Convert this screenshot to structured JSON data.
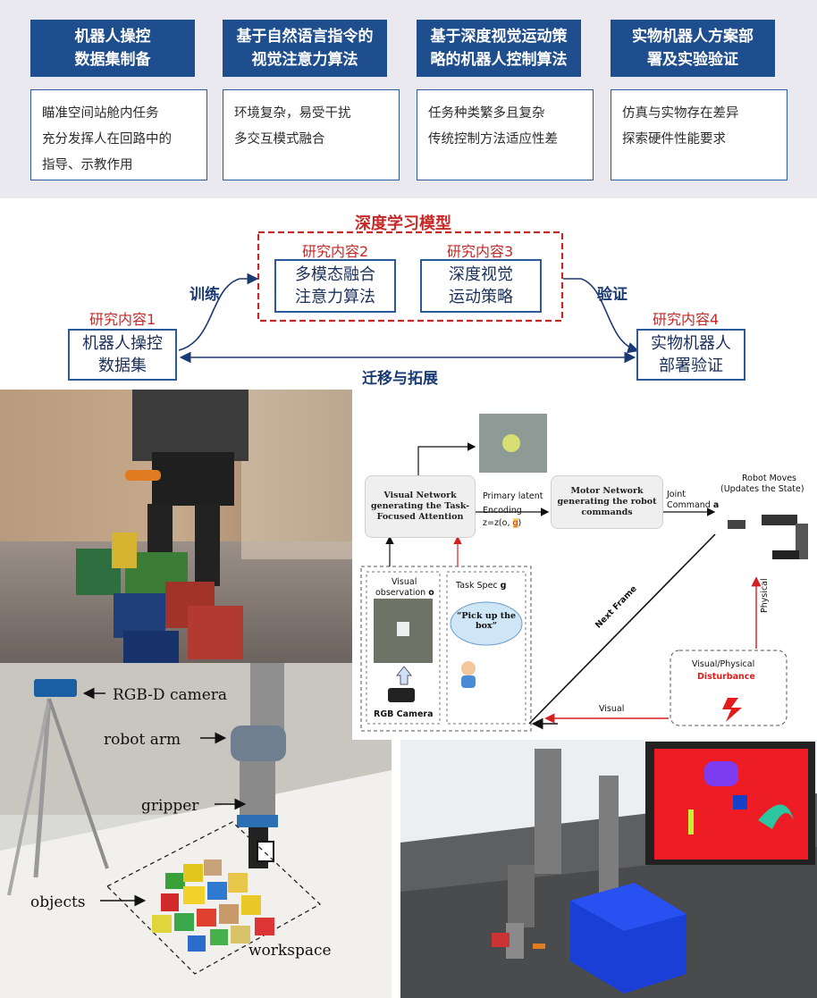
{
  "top": {
    "columns": [
      {
        "title_lines": [
          "机器人操控",
          "数据集制备"
        ],
        "items": [
          "瞄准空间站舱内任务",
          "充分发挥人在回路中的",
          "指导、示教作用"
        ]
      },
      {
        "title_lines": [
          "基于自然语言指令的",
          "视觉注意力算法"
        ],
        "items": [
          "环境复杂，易受干扰",
          "多交互模式融合"
        ]
      },
      {
        "title_lines": [
          "基于深度视觉运动策",
          "略的机器人控制算法"
        ],
        "items": [
          "任务种类繁多且复杂",
          "传统控制方法适应性差"
        ]
      },
      {
        "title_lines": [
          "实物机器人方案部",
          "署及实验验证"
        ],
        "items": [
          "仿真与实物存在差异",
          "探索硬件性能要求"
        ]
      }
    ]
  },
  "middle": {
    "dl_model": "深度学习模型",
    "research": [
      {
        "tag": "研究内容1",
        "lines": [
          "机器人操控",
          "数据集"
        ]
      },
      {
        "tag": "研究内容2",
        "lines": [
          "多模态融合",
          "注意力算法"
        ]
      },
      {
        "tag": "研究内容3",
        "lines": [
          "深度视觉",
          "运动策略"
        ]
      },
      {
        "tag": "研究内容4",
        "lines": [
          "实物机器人",
          "部署验证"
        ]
      }
    ],
    "train": "训练",
    "verify": "验证",
    "transfer": "迁移与拓展"
  },
  "flow": {
    "visual_network": "Visual Network generating the Task-Focused Attention",
    "motor_network": "Motor Network generating the robot commands",
    "primary_latent": "Primary latent",
    "encoding": "Encoding",
    "z_formula_a": "z=z(o, ",
    "z_formula_g": "g",
    "z_formula_b": ")",
    "joint": "Joint",
    "command": "Command ",
    "command_a": "a",
    "robot_moves_1": "Robot Moves",
    "robot_moves_2": "(Updates the State)",
    "visual_obs": "Visual",
    "visual_obs_2": "observation ",
    "visual_obs_o": "o",
    "task_spec": "Task Spec ",
    "task_spec_g": "g",
    "pick_up": "“Pick up the box”",
    "rgb_camera": "RGB Camera",
    "next_frame": "Next Frame",
    "physical": "Physical",
    "visual": "Visual",
    "disturbance_1": "Visual/Physical",
    "disturbance_2": "Disturbance"
  },
  "photo_labels": {
    "rgbd_camera": "RGB-D camera",
    "robot_arm": "robot arm",
    "gripper": "gripper",
    "objects": "objects",
    "workspace": "workspace"
  },
  "colors": {
    "navy": "#1f4e8f",
    "red": "#c62828",
    "sim_red": "#ee1c24",
    "sim_blue": "#1a3fd6"
  }
}
